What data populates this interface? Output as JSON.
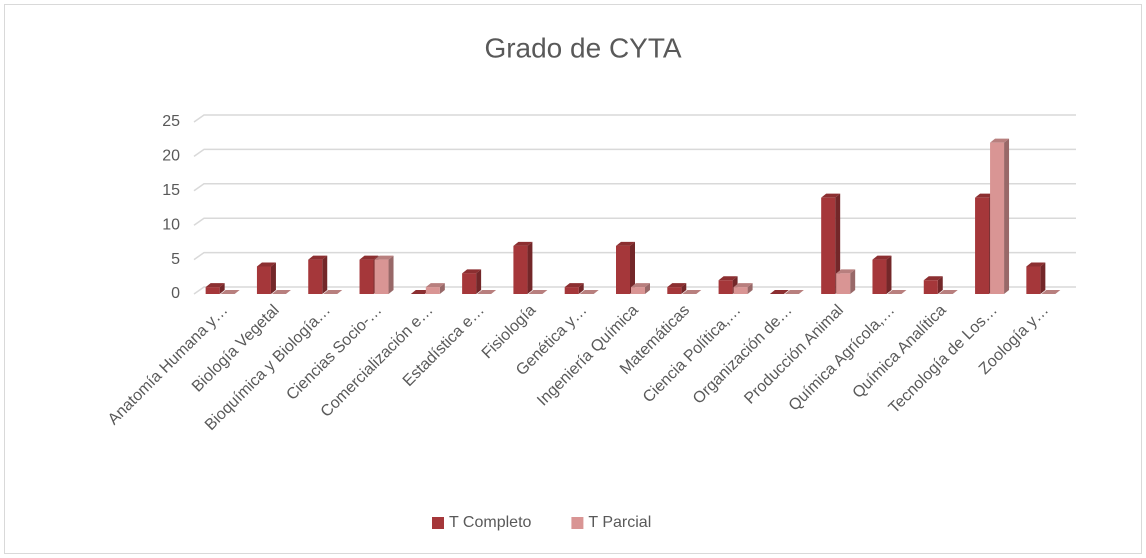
{
  "chart_data": {
    "type": "bar",
    "title": "Grado de CYTA",
    "categories": [
      "Anatomía Humana y…",
      "Biología Vegetal",
      "Bioquímica y Biología…",
      "Ciencias Socio-…",
      "Comercialización e…",
      "Estadística e…",
      "Fisiología",
      "Genética y…",
      "Ingeniería Química",
      "Matemáticas",
      "Ciencia Política,…",
      "Organización de…",
      "Producción Animal",
      "Química Agrícola,…",
      "Química Analítica",
      "Tecnología de Los…",
      "Zoología y…"
    ],
    "series": [
      {
        "name": "T Completo",
        "color": "#a5373a",
        "values": [
          1,
          4,
          5,
          5,
          0,
          3,
          7,
          1,
          7,
          1,
          2,
          0,
          14,
          5,
          2,
          14,
          4
        ]
      },
      {
        "name": "T Parcial",
        "color": "#d99594",
        "values": [
          0,
          0,
          0,
          5,
          1,
          0,
          0,
          0,
          1,
          0,
          1,
          0,
          3,
          0,
          0,
          22,
          0
        ]
      }
    ],
    "ylim": [
      0,
      25
    ],
    "yticks": [
      0,
      5,
      10,
      15,
      20,
      25
    ],
    "grid": true,
    "legend": "bottom"
  }
}
